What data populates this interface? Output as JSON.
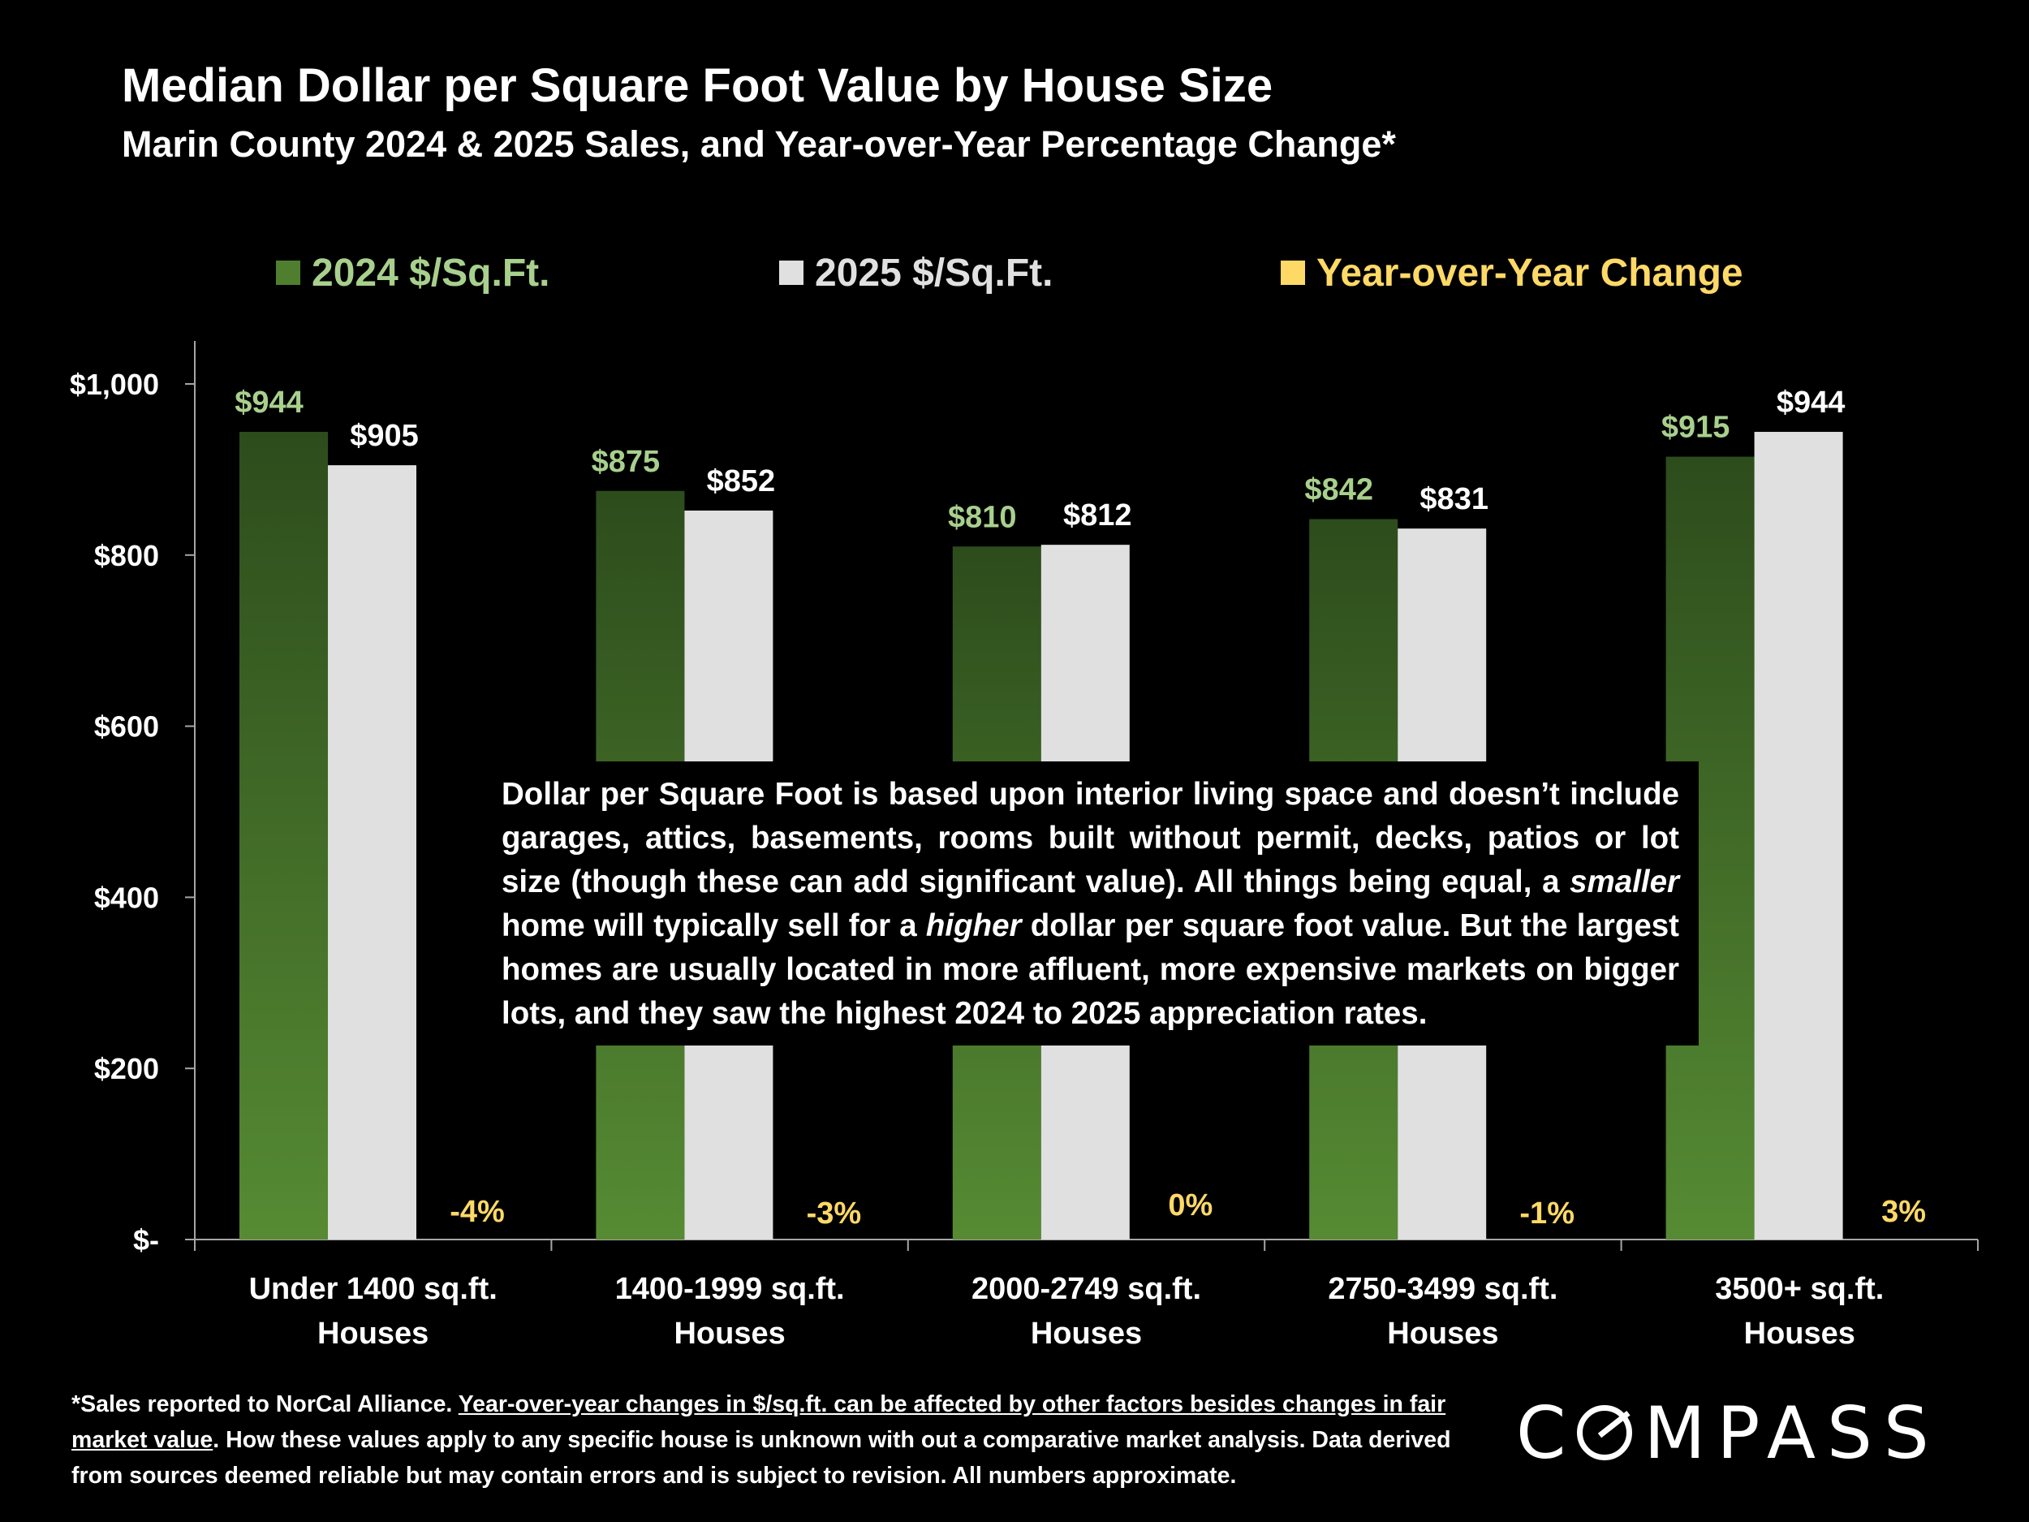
{
  "colors": {
    "background": "#000000",
    "bar_2024_top": "#2d4c1c",
    "bar_2024_bottom": "#568b33",
    "bar_2025": "#e0e0e0",
    "label_2024": "#a8d08d",
    "label_2025": "#ffffff",
    "label_change": "#ffd966",
    "axis": "#a6a6a6"
  },
  "chart_data": {
    "type": "bar",
    "title": "Median Dollar per Square Foot Value by House Size",
    "subtitle": "Marin County 2024 & 2025 Sales, and Year-over-Year Percentage Change*",
    "categories": [
      [
        "Under 1400 sq.ft.",
        "Houses"
      ],
      [
        "1400-1999 sq.ft.",
        "Houses"
      ],
      [
        "2000-2749 sq.ft.",
        "Houses"
      ],
      [
        "2750-3499 sq.ft.",
        "Houses"
      ],
      [
        "3500+ sq.ft.",
        "Houses"
      ]
    ],
    "series": [
      {
        "name": "2024 $/Sq.Ft.",
        "values": [
          944,
          875,
          810,
          842,
          915
        ],
        "labels": [
          "$944",
          "$875",
          "$810",
          "$842",
          "$915"
        ]
      },
      {
        "name": "2025 $/Sq.Ft.",
        "values": [
          905,
          852,
          812,
          831,
          944
        ],
        "labels": [
          "$905",
          "$852",
          "$812",
          "$831",
          "$944"
        ]
      },
      {
        "name": "Year-over-Year Change",
        "values": [
          -4,
          -3,
          0,
          -1,
          3
        ],
        "labels": [
          "-4%",
          "-3%",
          "0%",
          "-1%",
          "3%"
        ]
      }
    ],
    "ylim": [
      0,
      1000
    ],
    "yticks": [
      {
        "value": 0,
        "label": "$-"
      },
      {
        "value": 200,
        "label": "$200"
      },
      {
        "value": 400,
        "label": "$400"
      },
      {
        "value": 600,
        "label": "$600"
      },
      {
        "value": 800,
        "label": "$800"
      },
      {
        "value": 1000,
        "label": "$1,000"
      }
    ],
    "legend_position": "top"
  },
  "note": {
    "part1": "Dollar per Square Foot is based upon interior living space and doesn’t include garages, attics, basements, rooms built without permit, decks, patios or lot size (though these can add significant value). All things being equal, a ",
    "em1": "smaller",
    "part2": " home will typically sell for a ",
    "em2": "higher",
    "part3": " dollar per square foot value. But the largest homes are usually located in more affluent, more expensive markets on bigger lots, and they saw the highest 2024 to 2025 appreciation rates."
  },
  "footnote": {
    "part1": "*Sales reported to NorCal Alliance. ",
    "underlined": "Year-over-year changes in $/sq.ft. can be affected by other factors besides changes in fair market value",
    "part2": ". How these values apply to any specific house is unknown with out a comparative market analysis. Data derived from sources deemed reliable but may contain errors and is subject to revision. All numbers  approximate."
  },
  "logo": {
    "text_first": "C",
    "text_rest": "MPASS"
  }
}
